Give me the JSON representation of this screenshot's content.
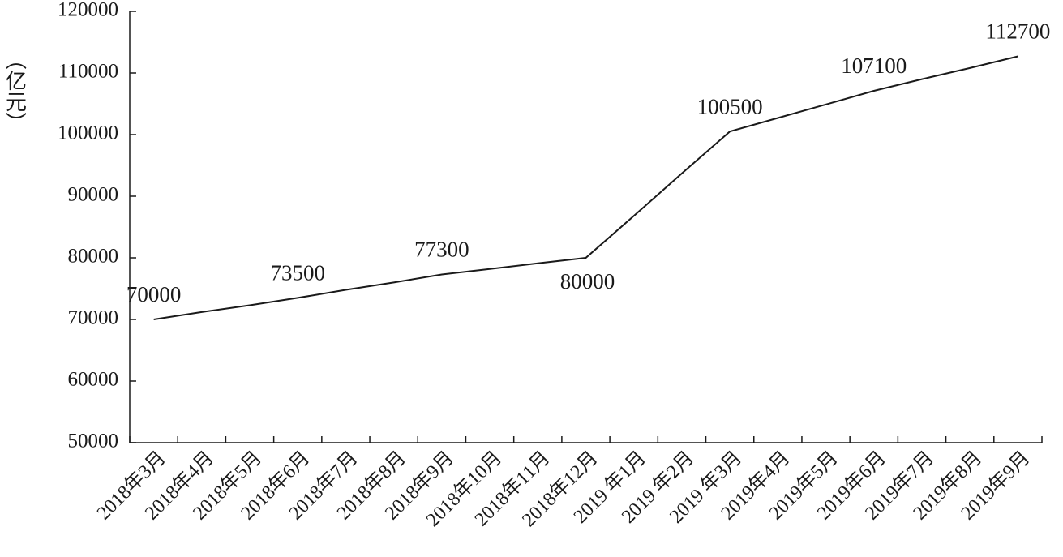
{
  "chart_data": {
    "type": "line",
    "y_label": "（亿元）",
    "categories": [
      "2018年3月",
      "2018年4月",
      "2018年5月",
      "2018年6月",
      "2018年7月",
      "2018年8月",
      "2018年9月",
      "2018年10月",
      "2018年11月",
      "2018年12月",
      "2019 年1月",
      "2019 年2月",
      "2019 年3月",
      "2019年4月",
      "2019年5月",
      "2019年6月",
      "2019年7月",
      "2019年8月",
      "2019年9月"
    ],
    "values": [
      70000,
      71200,
      72300,
      73500,
      74800,
      76000,
      77300,
      78200,
      79100,
      80000,
      86800,
      93700,
      100500,
      102700,
      104900,
      107100,
      109000,
      110800,
      112700
    ],
    "value_labels": [
      "70000",
      null,
      null,
      "73500",
      null,
      null,
      "77300",
      null,
      null,
      "80000",
      null,
      null,
      "100500",
      null,
      null,
      "107100",
      null,
      null,
      "112700"
    ],
    "color": "#1a1a1a",
    "ylim": [
      50000,
      120000
    ],
    "yticks": [
      50000,
      60000,
      70000,
      80000,
      90000,
      100000,
      110000,
      120000
    ]
  }
}
